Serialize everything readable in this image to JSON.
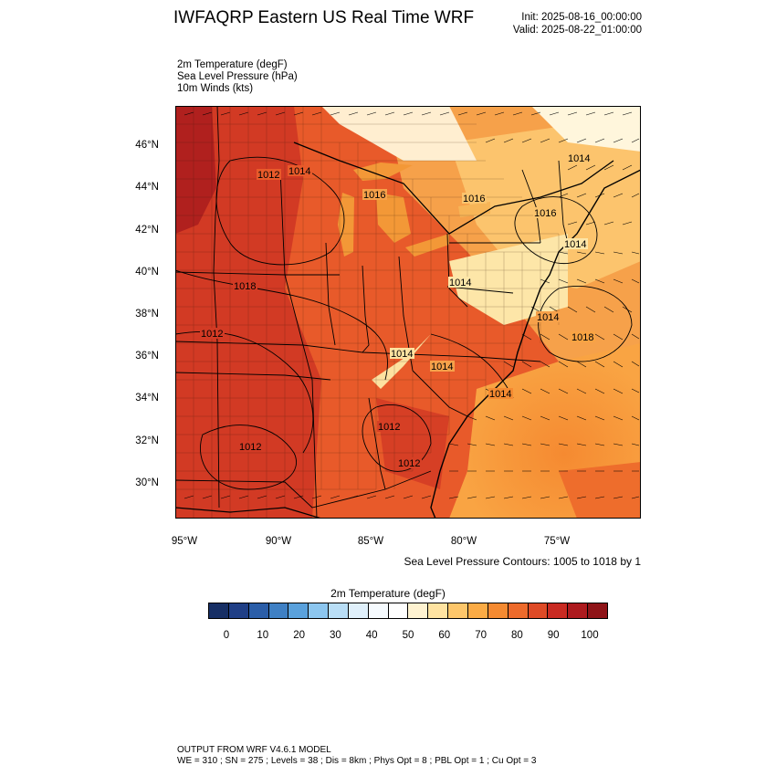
{
  "title": "IWFAQRP Eastern US Real Time WRF",
  "init_text": "Init: 2025-08-16_00:00:00",
  "valid_text": "Valid: 2025-08-22_01:00:00",
  "fields": [
    "2m Temperature   (degF)",
    "Sea Level Pressure   (hPa)",
    "10m Winds   (kts)"
  ],
  "lat_labels": [
    "46°N",
    "44°N",
    "42°N",
    "40°N",
    "38°N",
    "36°N",
    "34°N",
    "32°N",
    "30°N"
  ],
  "lon_labels": [
    "95°W",
    "90°W",
    "85°W",
    "80°W",
    "75°W"
  ],
  "contour_note": "Sea Level Pressure Contours: 1005 to 1018 by 1",
  "pressure_labels": [
    "1012",
    "1014",
    "1016",
    "1016",
    "1014",
    "1016",
    "1014",
    "1014",
    "1018",
    "1018",
    "1012",
    "1014",
    "1014",
    "1012",
    "1012",
    "1012",
    "1014",
    "1014"
  ],
  "colorbar": {
    "title": "2m Temperature  (degF)",
    "tick_labels": [
      "0",
      "10",
      "20",
      "30",
      "40",
      "50",
      "60",
      "70",
      "80",
      "90",
      "100"
    ],
    "colors": [
      "#172f65",
      "#203f86",
      "#2b5ea8",
      "#3f80c4",
      "#5aa1dc",
      "#8cc6ef",
      "#b9def6",
      "#e0f0fb",
      "#f6fbff",
      "#ffffff",
      "#fff3d1",
      "#ffe3a1",
      "#fdc66a",
      "#fbab45",
      "#f58a31",
      "#ed6a2b",
      "#de4a26",
      "#c92a22",
      "#ad1a1e",
      "#8f1418"
    ]
  },
  "footer": {
    "line1": "OUTPUT FROM WRF V4.6.1 MODEL",
    "line2": "WE = 310 ; SN = 275 ; Levels = 38 ; Dis = 8km ; Phys Opt = 8 ; PBL Opt = 1 ; Cu Opt = 3"
  }
}
